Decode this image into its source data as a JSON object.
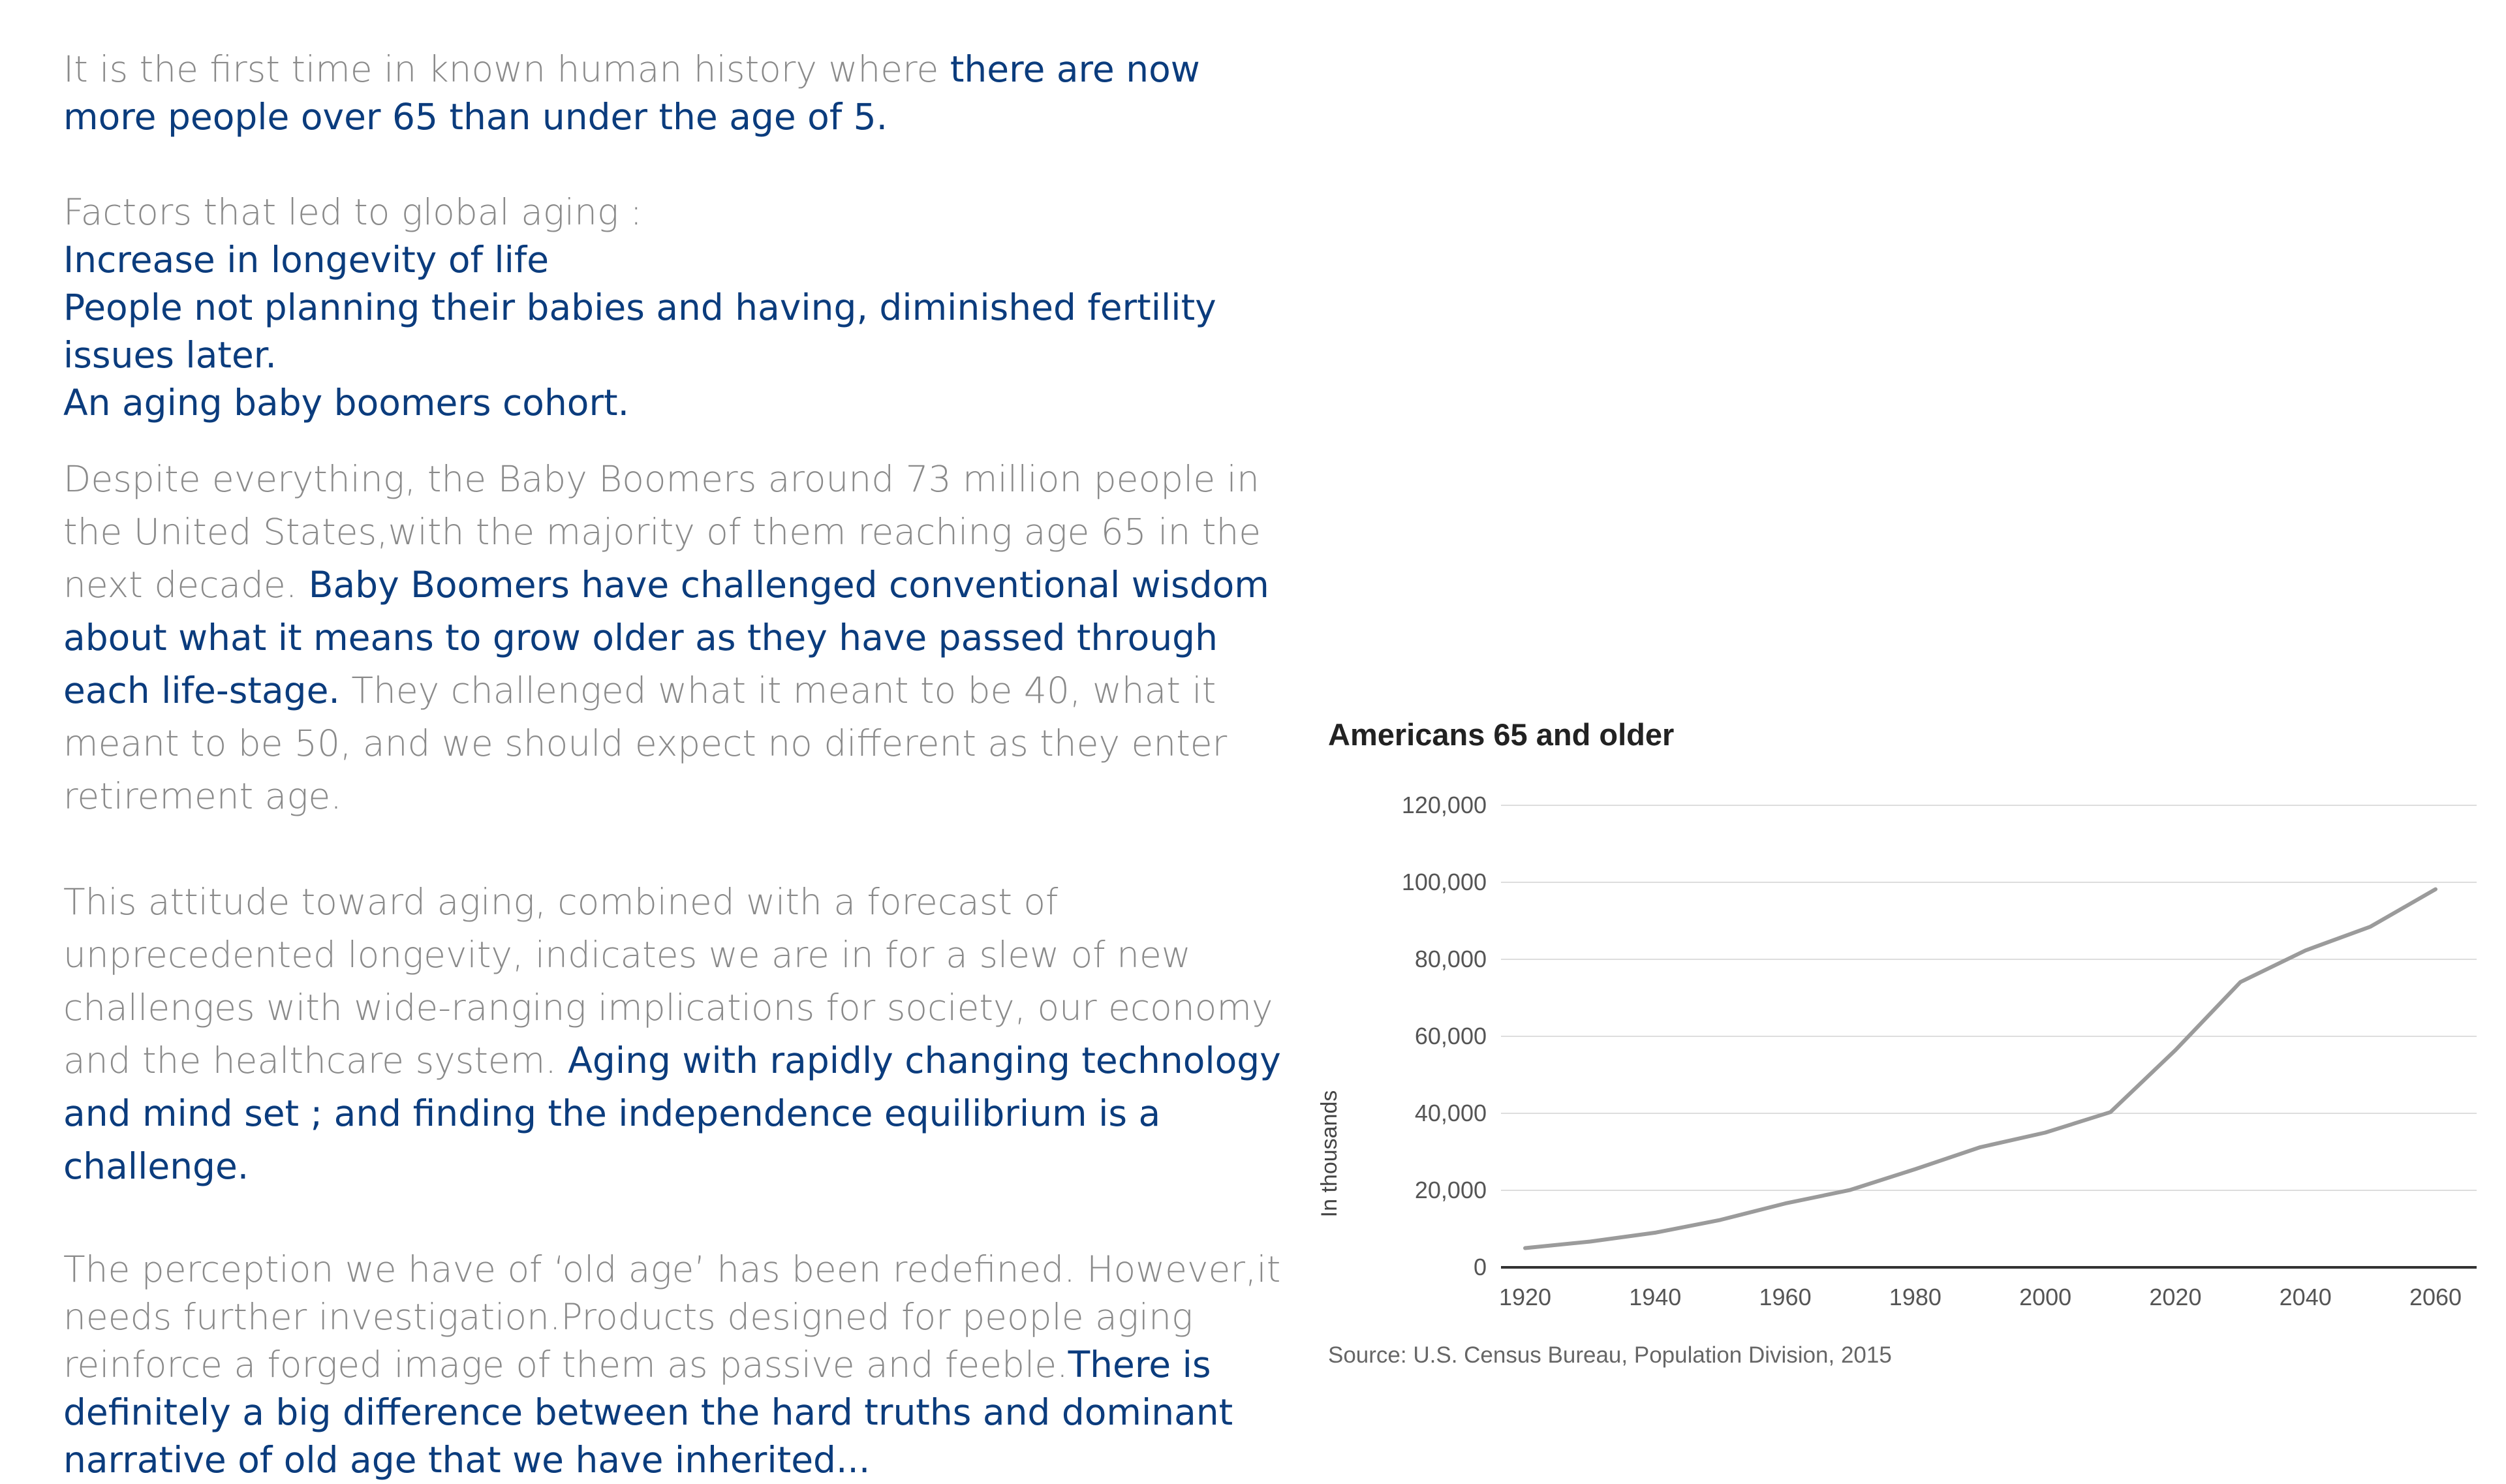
{
  "text": {
    "intro": {
      "plain": "It is the first time in known human history where ",
      "highlight": "there are now more people over 65 than under the age of 5."
    },
    "factors": {
      "heading": "Factors that led to global aging :",
      "items": [
        "Increase in longevity of life",
        "People not planning their babies and having, diminished fertility issues later.",
        "An aging baby boomers cohort."
      ]
    },
    "boomers": {
      "plain1": "Despite everything, the Baby Boomers around 73 million people in the United States,with the majority of them reaching age 65 in the next decade. ",
      "highlight": "Baby Boomers have challenged conventional wisdom about what it means to grow older as they have passed through each life-stage.",
      "plain2": " They challenged what it meant to be 40, what it meant to be 50, and we should expect no different as they enter retirement age."
    },
    "attitude": {
      "plain": "This attitude toward aging, combined with a forecast of unprecedented longevity, indicates we are in for a slew of new challenges with wide-ranging implications for society, our economy and the healthcare system.",
      "highlight": " Aging with rapidly changing technology and mind set ; and finding the independence equilibrium is a challenge."
    },
    "perception": {
      "plain": "The perception we have of ‘old age’ has been redefined. However,it needs further investigation.Products designed for people aging reinforce a forged image of them as passive and feeble.",
      "highlight": "There is definitely a big difference between the hard truths and dominant narrative of old age that we have inherited..."
    }
  },
  "colors": {
    "highlight": "#0b3c7d",
    "body": "#8a8a8a",
    "line": "#9b9b9b"
  },
  "chart_data": {
    "type": "line",
    "title": "Americans 65 and older",
    "ylabel": "In thousands",
    "xlabel": "",
    "source": "Source: U.S. Census Bureau, Population Division, 2015",
    "xlim": [
      1920,
      2060
    ],
    "ylim": [
      0,
      120000
    ],
    "x_ticks": [
      "1920",
      "1940",
      "1960",
      "1980",
      "2000",
      "2020",
      "2040",
      "2060"
    ],
    "y_ticks": [
      "0",
      "20,000",
      "40,000",
      "60,000",
      "80,000",
      "100,000",
      "120,000"
    ],
    "grid": true,
    "series": [
      {
        "x": [
          1920,
          1930,
          1940,
          1950,
          1960,
          1970,
          1980,
          1990,
          2000,
          2010,
          2020,
          2030,
          2040,
          2050,
          2060
        ],
        "values": [
          5000,
          6700,
          9000,
          12300,
          16600,
          20100,
          25500,
          31200,
          35000,
          40300,
          56400,
          74100,
          82300,
          88500,
          98200
        ]
      }
    ]
  }
}
